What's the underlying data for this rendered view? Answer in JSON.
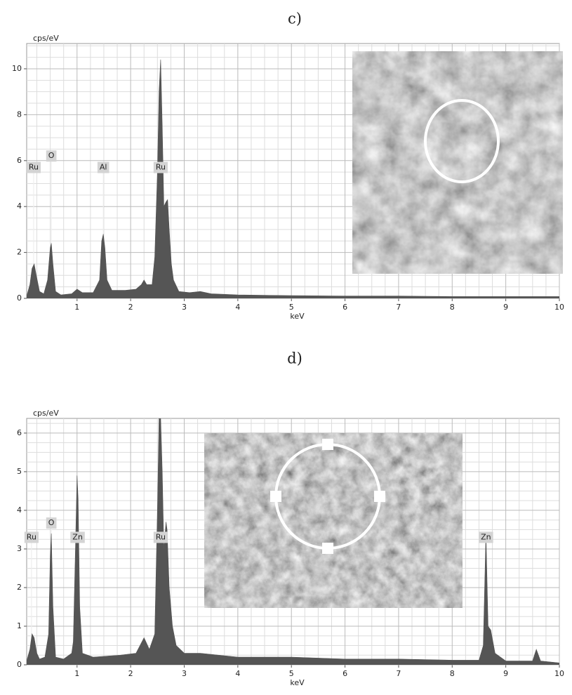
{
  "chart_data": [
    {
      "type": "area",
      "title": "c)",
      "y_label": "cps/eV",
      "x_label": "keV",
      "color": "#555555",
      "grid": true,
      "grid_subdivisions": 4,
      "xlim": [
        0.06,
        10
      ],
      "ylim": [
        0,
        11.1
      ],
      "xticks": [
        1,
        2,
        3,
        4,
        5,
        6,
        7,
        8,
        9,
        10
      ],
      "yticks": [
        0,
        2,
        4,
        6,
        8,
        10
      ],
      "x": [
        0.06,
        0.12,
        0.16,
        0.2,
        0.24,
        0.3,
        0.38,
        0.45,
        0.5,
        0.52,
        0.55,
        0.6,
        0.7,
        0.9,
        1.0,
        1.1,
        1.3,
        1.42,
        1.46,
        1.49,
        1.52,
        1.56,
        1.65,
        1.9,
        2.1,
        2.2,
        2.25,
        2.3,
        2.4,
        2.45,
        2.5,
        2.53,
        2.56,
        2.59,
        2.62,
        2.66,
        2.69,
        2.72,
        2.76,
        2.8,
        2.9,
        3.1,
        3.3,
        3.5,
        4,
        5,
        6,
        7,
        8,
        9,
        10
      ],
      "values": [
        0.1,
        0.6,
        1.3,
        1.5,
        1.0,
        0.3,
        0.2,
        0.8,
        2.2,
        2.4,
        1.5,
        0.3,
        0.15,
        0.2,
        0.4,
        0.25,
        0.25,
        0.8,
        2.5,
        2.8,
        2.2,
        0.8,
        0.35,
        0.35,
        0.4,
        0.6,
        0.8,
        0.6,
        0.6,
        1.8,
        5.5,
        9.0,
        10.4,
        7.5,
        4.0,
        4.2,
        4.3,
        3.0,
        1.5,
        0.8,
        0.3,
        0.25,
        0.3,
        0.2,
        0.15,
        0.12,
        0.1,
        0.1,
        0.08,
        0.08,
        0.08
      ],
      "annotations": [
        {
          "text": "Ru",
          "x": 0.19,
          "y": 5.7
        },
        {
          "text": "O",
          "x": 0.52,
          "y": 6.2
        },
        {
          "text": "Al",
          "x": 1.49,
          "y": 5.7
        },
        {
          "text": "Ru",
          "x": 2.56,
          "y": 5.7
        }
      ]
    },
    {
      "type": "area",
      "title": "d)",
      "y_label": "cps/eV",
      "x_label": "keV",
      "color": "#555555",
      "grid": true,
      "grid_subdivisions": 4,
      "xlim": [
        0.06,
        10
      ],
      "ylim": [
        0,
        6.38
      ],
      "xticks": [
        1,
        2,
        3,
        4,
        5,
        6,
        7,
        8,
        9,
        10
      ],
      "yticks": [
        0,
        1,
        2,
        3,
        4,
        5,
        6
      ],
      "x": [
        0.06,
        0.12,
        0.16,
        0.2,
        0.25,
        0.3,
        0.4,
        0.47,
        0.5,
        0.52,
        0.55,
        0.6,
        0.75,
        0.9,
        0.93,
        0.97,
        1.0,
        1.02,
        1.05,
        1.1,
        1.3,
        1.8,
        2.1,
        2.25,
        2.35,
        2.45,
        2.5,
        2.53,
        2.56,
        2.59,
        2.62,
        2.66,
        2.68,
        2.72,
        2.78,
        2.85,
        3.0,
        3.3,
        4,
        5,
        6,
        7,
        8,
        8.5,
        8.58,
        8.63,
        8.67,
        8.72,
        8.8,
        9,
        9.5,
        9.57,
        9.65,
        10
      ],
      "values": [
        0.1,
        0.4,
        0.8,
        0.7,
        0.3,
        0.15,
        0.2,
        0.8,
        2.8,
        3.4,
        1.5,
        0.2,
        0.15,
        0.3,
        0.6,
        3.0,
        4.9,
        4.3,
        1.5,
        0.3,
        0.2,
        0.25,
        0.3,
        0.7,
        0.4,
        0.8,
        4.0,
        6.4,
        6.4,
        5.0,
        3.0,
        3.7,
        3.5,
        2.0,
        1.0,
        0.5,
        0.3,
        0.3,
        0.2,
        0.2,
        0.15,
        0.15,
        0.12,
        0.12,
        0.5,
        3.4,
        1.0,
        0.9,
        0.3,
        0.1,
        0.1,
        0.4,
        0.1,
        0.05
      ],
      "annotations": [
        {
          "text": "Ru",
          "x": 0.15,
          "y": 3.3
        },
        {
          "text": "O",
          "x": 0.52,
          "y": 3.67
        },
        {
          "text": "Zn",
          "x": 1.01,
          "y": 3.3
        },
        {
          "text": "Ru",
          "x": 2.56,
          "y": 3.3
        },
        {
          "text": "Zn",
          "x": 8.63,
          "y": 3.3
        }
      ]
    }
  ]
}
